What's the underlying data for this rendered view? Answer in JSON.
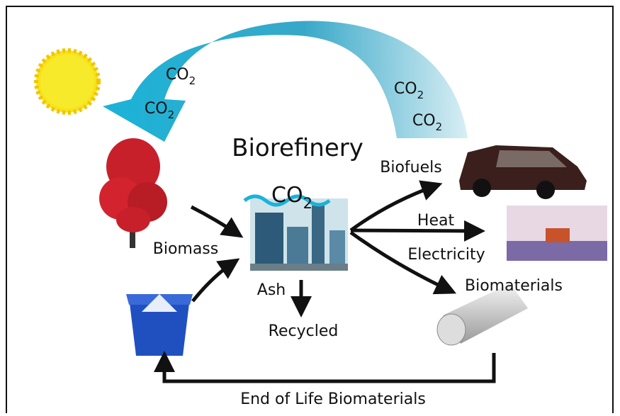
{
  "title": "Biorefinery",
  "co2_labels": [
    {
      "main": "CO",
      "sub": "2"
    },
    {
      "main": "CO",
      "sub": "2"
    },
    {
      "main": "CO",
      "sub": "2"
    },
    {
      "main": "CO",
      "sub": "2"
    },
    {
      "main": "CO",
      "sub": "2"
    }
  ],
  "inputs": {
    "biomass": "Biomass"
  },
  "outputs": {
    "biofuels": "Biofuels",
    "heat": "Heat",
    "electricity": "Electricity",
    "biomaterials": "Biomaterials"
  },
  "residue": {
    "ash": "Ash",
    "recycled": "Recycled"
  },
  "loop": "End of Life Biomaterials"
}
